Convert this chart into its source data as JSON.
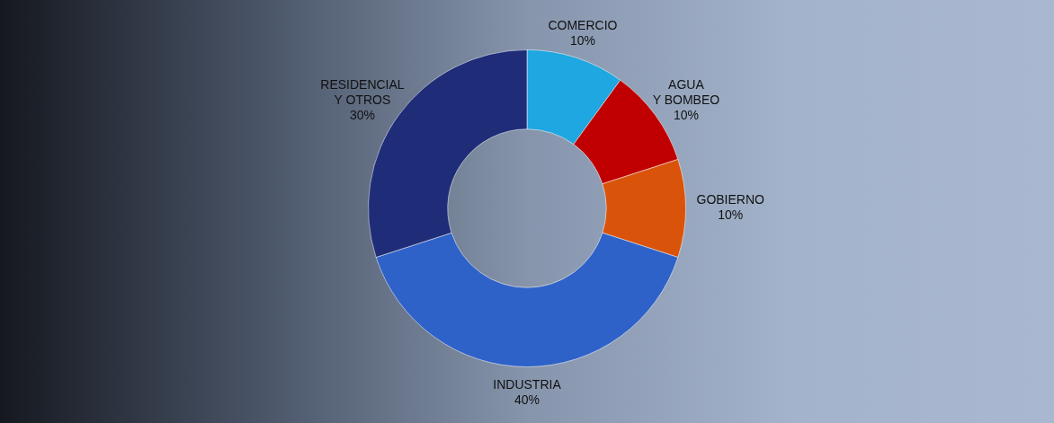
{
  "chart_data": {
    "type": "donut",
    "categories": [
      "COMERCIO",
      "AGUA Y BOMBEO",
      "GOBIERNO",
      "INDUSTRIA",
      "RESIDENCIAL Y OTROS"
    ],
    "values": [
      10,
      10,
      10,
      40,
      30
    ],
    "value_labels": [
      "10%",
      "10%",
      "10%",
      "40%",
      "30%"
    ],
    "colors": [
      "#1ea7e0",
      "#c00000",
      "#d9530a",
      "#2f62c8",
      "#1f2d78"
    ],
    "legend": false
  }
}
